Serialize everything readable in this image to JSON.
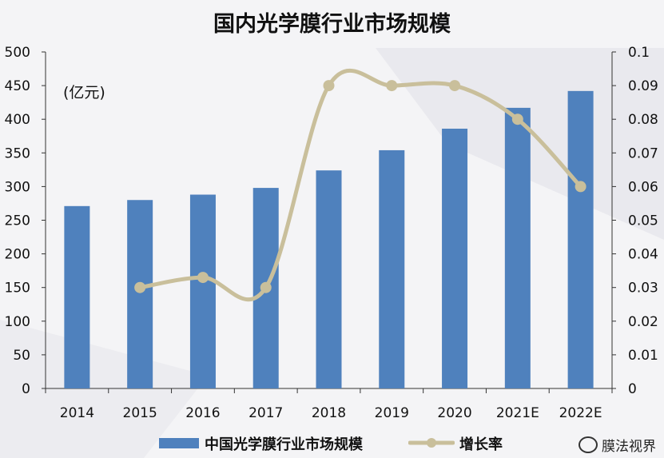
{
  "title": "国内光学膜行业市场规模",
  "unit_label": "(亿元)",
  "watermark": "膜法视界",
  "colors": {
    "bar": "#4f81bd",
    "line": "#c9bf9b",
    "grid": "#c8c8c8",
    "axis": "#333333"
  },
  "chart_data": {
    "type": "bar",
    "title": "国内光学膜行业市场规模",
    "categories": [
      "2014",
      "2015",
      "2016",
      "2017",
      "2018",
      "2019",
      "2020",
      "2021E",
      "2022E"
    ],
    "series": [
      {
        "name": "中国光学膜行业市场规模",
        "type": "bar",
        "axis": "left",
        "values": [
          271,
          280,
          288,
          298,
          324,
          354,
          386,
          417,
          442
        ]
      },
      {
        "name": "增长率",
        "type": "line",
        "axis": "right",
        "values": [
          null,
          0.03,
          0.033,
          0.03,
          0.09,
          0.09,
          0.09,
          0.08,
          0.06
        ]
      }
    ],
    "ylim": [
      0,
      500
    ],
    "yticks": [
      "0",
      "50",
      "100",
      "150",
      "200",
      "250",
      "300",
      "350",
      "400",
      "450",
      "500"
    ],
    "y2lim": [
      0,
      0.1
    ],
    "y2ticks": [
      "0",
      "0.01",
      "0.02",
      "0.03",
      "0.04",
      "0.05",
      "0.06",
      "0.07",
      "0.08",
      "0.09",
      "0.1"
    ],
    "grid": false,
    "legend": "bottom"
  }
}
